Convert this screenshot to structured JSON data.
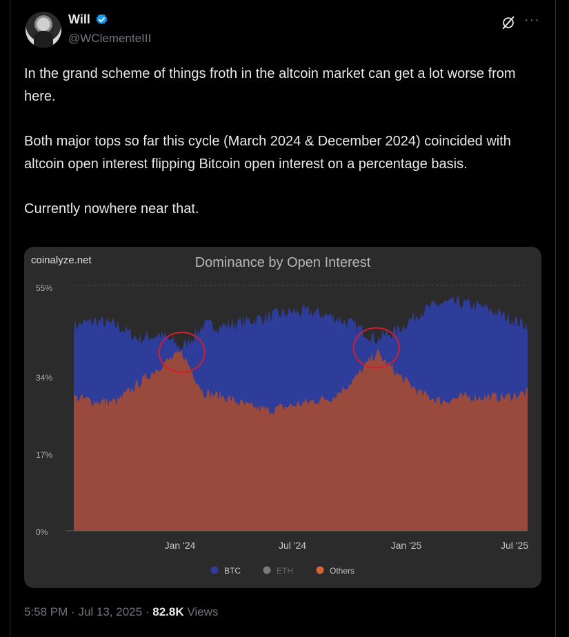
{
  "tweet": {
    "author_name": "Will",
    "author_handle": "@WClementeIII",
    "more_glyph": "···",
    "paragraphs": [
      "In the grand scheme of things froth in the altcoin market can get a lot worse from here.",
      "Both major tops so far this cycle (March 2024 & December 2024) coincided with altcoin open interest flipping Bitcoin open interest on a percentage basis.",
      "Currently nowhere near that."
    ],
    "time": "5:58 PM",
    "date": "Jul 13, 2025",
    "separator": "·",
    "views_count": "82.8K",
    "views_label": "Views"
  },
  "colors": {
    "verified": "#1d9bf0",
    "btc": "#2e3c9a",
    "others": "#9a4a3c",
    "eth": "#7a7a7a",
    "highlight_circle": "#d21f2b"
  },
  "chart_data": {
    "type": "area",
    "watermark": "coinalyze.net",
    "title": "Dominance by Open Interest",
    "ylim": [
      0,
      55
    ],
    "yticks": [
      "55%",
      "34%",
      "17%",
      "0%"
    ],
    "xticks": [
      "Jan '24",
      "Jul '24",
      "Jan '25",
      "Jul '25"
    ],
    "x_range": [
      "2023-10",
      "2025-07"
    ],
    "legend_position": "bottom",
    "series": [
      {
        "name": "BTC",
        "color": "#2e3c9a",
        "x": [
          "2023-10",
          "2023-11",
          "2023-12",
          "2024-01",
          "2024-02",
          "2024-03",
          "2024-04",
          "2024-05",
          "2024-06",
          "2024-07",
          "2024-08",
          "2024-09",
          "2024-10",
          "2024-11",
          "2024-12",
          "2025-01",
          "2025-02",
          "2025-03",
          "2025-04",
          "2025-05",
          "2025-06",
          "2025-07"
        ],
        "values": [
          46,
          47,
          46,
          43,
          44,
          41,
          46,
          46,
          47,
          48,
          49,
          49,
          48,
          46,
          43,
          45,
          49,
          51,
          51,
          50,
          48,
          46
        ]
      },
      {
        "name": "ETH",
        "color": "#7a7a7a",
        "values": []
      },
      {
        "name": "Others",
        "color": "#9a4a3c",
        "x": [
          "2023-10",
          "2023-11",
          "2023-12",
          "2024-01",
          "2024-02",
          "2024-03",
          "2024-04",
          "2024-05",
          "2024-06",
          "2024-07",
          "2024-08",
          "2024-09",
          "2024-10",
          "2024-11",
          "2024-12",
          "2025-01",
          "2025-02",
          "2025-03",
          "2025-04",
          "2025-05",
          "2025-06",
          "2025-07"
        ],
        "values": [
          30,
          29,
          29,
          33,
          37,
          40,
          31,
          30,
          28,
          27,
          28,
          29,
          30,
          34,
          40,
          35,
          31,
          29,
          30,
          30,
          30,
          31
        ]
      }
    ],
    "annotations": [
      {
        "type": "circle",
        "x": "2024-03",
        "y": 40,
        "label": ""
      },
      {
        "type": "circle",
        "x": "2024-12",
        "y": 41,
        "label": ""
      }
    ]
  }
}
